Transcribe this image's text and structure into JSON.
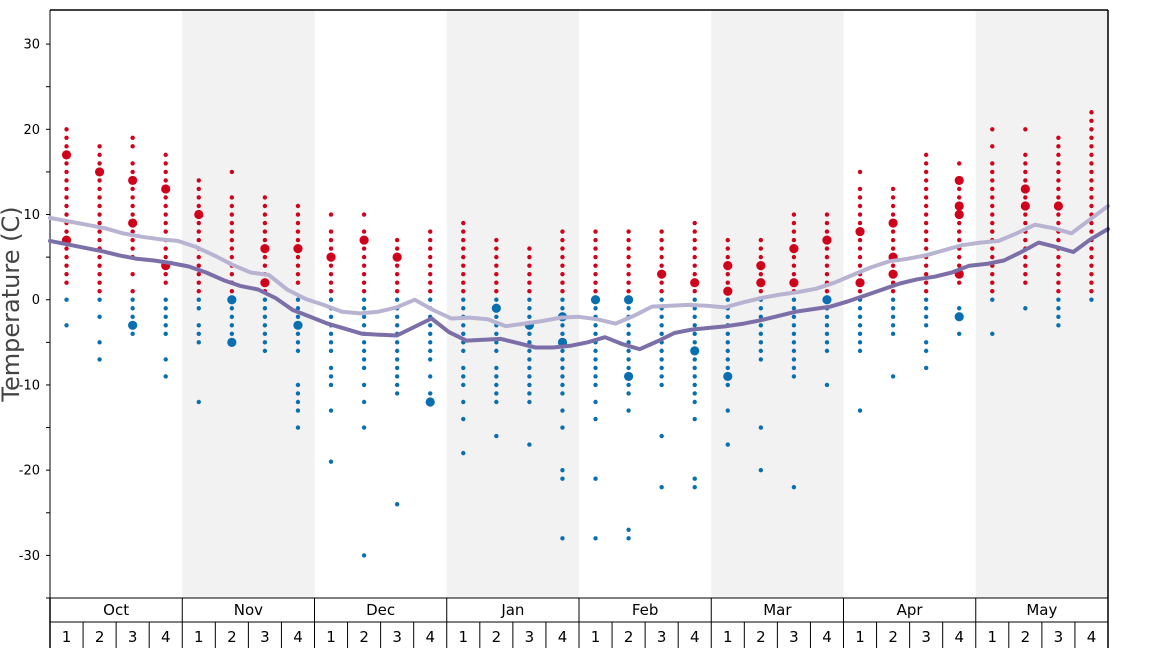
{
  "chart_data": {
    "type": "scatter",
    "ylabel": "Temperature (C)",
    "ylim": [
      -35,
      34
    ],
    "yticks": [
      30,
      20,
      10,
      0,
      -10,
      -20,
      -30
    ],
    "months": [
      "Oct",
      "Nov",
      "Dec",
      "Jan",
      "Feb",
      "Mar",
      "Apr",
      "May"
    ],
    "weeks_per_month": [
      "1",
      "2",
      "3",
      "4"
    ],
    "shaded_months": [
      "Nov",
      "Jan",
      "Mar",
      "May"
    ],
    "colors": {
      "warm_dots": "#d0021b",
      "cold_dots": "#0a6fb0",
      "light_line": "#b9b3d2",
      "dark_line": "#7c6fa8",
      "shade": "#f2f2f2"
    },
    "series": [
      {
        "values": [
          9.6,
          9.2,
          8.8,
          8.4,
          7.8,
          7.4,
          7.1,
          6.9,
          6.2,
          5.2,
          4.1,
          3.2,
          2.9,
          1.2,
          0.1,
          -0.6,
          -1.4,
          -1.6,
          -1.4,
          -0.9,
          0.0,
          -1.2,
          -2.2,
          -2.1,
          -2.3,
          -3.1,
          -2.8,
          -2.5,
          -2.1,
          -2.0,
          -2.3,
          -2.8,
          -1.9,
          -0.8,
          -0.7,
          -0.6,
          -0.7,
          -0.9,
          -0.3,
          0.2,
          0.6,
          0.9,
          1.3,
          2.0,
          2.9,
          3.8,
          4.5,
          4.8,
          5.2,
          5.8,
          6.4,
          6.7,
          6.9,
          7.8,
          8.8,
          8.4,
          7.8,
          9.4,
          11.0
        ]
      },
      {
        "values": [
          6.9,
          6.5,
          6.1,
          5.7,
          5.2,
          4.8,
          4.6,
          4.3,
          3.9,
          3.2,
          2.3,
          1.6,
          1.2,
          0.2,
          -1.2,
          -2.0,
          -2.8,
          -3.4,
          -4.0,
          -4.1,
          -4.2,
          -3.2,
          -2.2,
          -3.8,
          -4.8,
          -4.7,
          -4.6,
          -5.1,
          -5.6,
          -5.6,
          -5.4,
          -5.0,
          -4.4,
          -5.2,
          -5.8,
          -4.9,
          -3.9,
          -3.5,
          -3.3,
          -3.1,
          -2.8,
          -2.4,
          -1.9,
          -1.4,
          -1.1,
          -0.8,
          -0.2,
          0.5,
          1.2,
          1.9,
          2.4,
          2.7,
          3.2,
          4.0,
          4.2,
          4.6,
          5.6,
          6.7,
          6.2,
          5.6,
          7.1,
          8.3
        ]
      }
    ],
    "weekly_observations": [
      {
        "warm": [
          20,
          19,
          18,
          17,
          16,
          15,
          14,
          13,
          12,
          11,
          10,
          9,
          8,
          7,
          6,
          5,
          4,
          3,
          2
        ],
        "cold": [
          0,
          -3
        ],
        "big_warm": [
          17,
          7
        ],
        "big_cold": []
      },
      {
        "warm": [
          18,
          17,
          16,
          15,
          14,
          13,
          12,
          11,
          10,
          9,
          8,
          7,
          6,
          5,
          4,
          3,
          2,
          1
        ],
        "cold": [
          0,
          -2,
          -5,
          -7
        ],
        "big_warm": [
          15
        ],
        "big_cold": []
      },
      {
        "warm": [
          19,
          18,
          16,
          15,
          14,
          13,
          12,
          11,
          10,
          9,
          8,
          7,
          6,
          5,
          3,
          1
        ],
        "cold": [
          0,
          -1,
          -2,
          -3,
          -4
        ],
        "big_warm": [
          14,
          9
        ],
        "big_cold": [
          -3
        ]
      },
      {
        "warm": [
          17,
          16,
          15,
          14,
          13,
          12,
          11,
          10,
          9,
          8,
          7,
          6,
          5,
          4,
          3,
          2
        ],
        "cold": [
          0,
          -1,
          -2,
          -3,
          -4,
          -7,
          -9
        ],
        "big_warm": [
          13,
          4
        ],
        "big_cold": []
      },
      {
        "warm": [
          14,
          13,
          12,
          11,
          10,
          9,
          8,
          7,
          6,
          5,
          4,
          3,
          2,
          1
        ],
        "cold": [
          0,
          -1,
          -3,
          -4,
          -5,
          -12
        ],
        "big_warm": [
          10
        ],
        "big_cold": []
      },
      {
        "warm": [
          15,
          12,
          11,
          10,
          9,
          8,
          7,
          6,
          5,
          4,
          3,
          2,
          1
        ],
        "cold": [
          0,
          -1,
          -2,
          -3,
          -4,
          -5
        ],
        "big_warm": [],
        "big_cold": [
          0,
          -5
        ]
      },
      {
        "warm": [
          12,
          11,
          10,
          9,
          8,
          7,
          6,
          5,
          4,
          3,
          2,
          1
        ],
        "cold": [
          0,
          -1,
          -2,
          -3,
          -4,
          -5,
          -6
        ],
        "big_warm": [
          6,
          2
        ],
        "big_cold": []
      },
      {
        "warm": [
          11,
          10,
          9,
          8,
          7,
          6,
          5,
          4,
          3,
          2
        ],
        "cold": [
          0,
          -1,
          -2,
          -3,
          -4,
          -5,
          -6,
          -10,
          -11,
          -12,
          -13,
          -15
        ],
        "big_warm": [
          6
        ],
        "big_cold": [
          -3
        ]
      },
      {
        "warm": [
          10,
          8,
          7,
          6,
          5,
          4,
          3,
          2,
          1
        ],
        "cold": [
          0,
          -1,
          -2,
          -3,
          -4,
          -5,
          -6,
          -8,
          -9,
          -10,
          -13,
          -19
        ],
        "big_warm": [
          5
        ],
        "big_cold": []
      },
      {
        "warm": [
          10,
          8,
          7,
          6,
          5,
          4,
          3,
          2,
          1
        ],
        "cold": [
          0,
          -1,
          -2,
          -3,
          -4,
          -5,
          -6,
          -7,
          -8,
          -10,
          -12,
          -15,
          -30
        ],
        "big_warm": [
          7
        ],
        "big_cold": []
      },
      {
        "warm": [
          7,
          6,
          5,
          4,
          3,
          2,
          1
        ],
        "cold": [
          0,
          -1,
          -2,
          -3,
          -4,
          -5,
          -6,
          -7,
          -8,
          -9,
          -10,
          -11,
          -24
        ],
        "big_warm": [
          5
        ],
        "big_cold": []
      },
      {
        "warm": [
          8,
          7,
          6,
          5,
          4,
          3,
          2,
          1
        ],
        "cold": [
          0,
          -1,
          -2,
          -3,
          -4,
          -5,
          -6,
          -7,
          -9,
          -11,
          -12
        ],
        "big_warm": [],
        "big_cold": [
          -12
        ]
      },
      {
        "warm": [
          9,
          8,
          7,
          6,
          5,
          4,
          3,
          2,
          1
        ],
        "cold": [
          0,
          -1,
          -2,
          -3,
          -4,
          -5,
          -6,
          -8,
          -9,
          -10,
          -12,
          -14,
          -18
        ],
        "big_warm": [],
        "big_cold": []
      },
      {
        "warm": [
          7,
          6,
          5,
          4,
          3,
          2,
          1
        ],
        "cold": [
          0,
          -1,
          -2,
          -3,
          -4,
          -5,
          -6,
          -8,
          -9,
          -10,
          -11,
          -12,
          -16
        ],
        "big_warm": [],
        "big_cold": [
          -1
        ]
      },
      {
        "warm": [
          6,
          5,
          4,
          3,
          2,
          1
        ],
        "cold": [
          0,
          -1,
          -2,
          -3,
          -4,
          -5,
          -6,
          -7,
          -8,
          -9,
          -10,
          -11,
          -12,
          -17
        ],
        "big_warm": [],
        "big_cold": [
          -3
        ]
      },
      {
        "warm": [
          8,
          7,
          6,
          5,
          4,
          3,
          2,
          1
        ],
        "cold": [
          0,
          -1,
          -2,
          -3,
          -4,
          -5,
          -6,
          -7,
          -8,
          -9,
          -10,
          -11,
          -13,
          -15,
          -20,
          -21,
          -28
        ],
        "big_warm": [],
        "big_cold": [
          -2,
          -5
        ]
      },
      {
        "warm": [
          8,
          7,
          6,
          5,
          4,
          3,
          2,
          1
        ],
        "cold": [
          0,
          -1,
          -2,
          -3,
          -4,
          -5,
          -6,
          -7,
          -8,
          -9,
          -10,
          -12,
          -14,
          -21,
          -28
        ],
        "big_warm": [],
        "big_cold": [
          0
        ]
      },
      {
        "warm": [
          8,
          7,
          6,
          5,
          4,
          3,
          2,
          1
        ],
        "cold": [
          0,
          -1,
          -2,
          -3,
          -4,
          -5,
          -6,
          -7,
          -8,
          -9,
          -10,
          -11,
          -13,
          -27,
          -28
        ],
        "big_warm": [],
        "big_cold": [
          0,
          -9
        ]
      },
      {
        "warm": [
          8,
          7,
          6,
          5,
          4,
          3,
          2,
          1
        ],
        "cold": [
          0,
          -1,
          -2,
          -3,
          -4,
          -5,
          -6,
          -7,
          -8,
          -9,
          -10,
          -16,
          -22
        ],
        "big_warm": [
          3
        ],
        "big_cold": []
      },
      {
        "warm": [
          9,
          8,
          7,
          6,
          5,
          4,
          3,
          2,
          1
        ],
        "cold": [
          0,
          -1,
          -2,
          -3,
          -4,
          -5,
          -6,
          -7,
          -8,
          -9,
          -10,
          -11,
          -12,
          -14,
          -21,
          -22
        ],
        "big_warm": [
          2
        ],
        "big_cold": [
          -6
        ]
      },
      {
        "warm": [
          7,
          6,
          5,
          4,
          3,
          2,
          1
        ],
        "cold": [
          0,
          -1,
          -2,
          -3,
          -4,
          -5,
          -6,
          -7,
          -8,
          -10,
          -13,
          -17
        ],
        "big_warm": [
          4,
          1
        ],
        "big_cold": [
          -9
        ]
      },
      {
        "warm": [
          7,
          6,
          5,
          4,
          3,
          2,
          1
        ],
        "cold": [
          0,
          -1,
          -2,
          -3,
          -4,
          -5,
          -6,
          -7,
          -15,
          -20
        ],
        "big_warm": [
          4,
          2
        ],
        "big_cold": []
      },
      {
        "warm": [
          10,
          9,
          8,
          7,
          6,
          5,
          4,
          3,
          2,
          1
        ],
        "cold": [
          0,
          -1,
          -2,
          -3,
          -4,
          -5,
          -6,
          -7,
          -8,
          -9,
          -22
        ],
        "big_warm": [
          6,
          2
        ],
        "big_cold": []
      },
      {
        "warm": [
          10,
          9,
          8,
          7,
          6,
          5,
          4,
          3,
          2,
          1
        ],
        "cold": [
          0,
          -1,
          -2,
          -3,
          -4,
          -5,
          -6,
          -10
        ],
        "big_warm": [
          7
        ],
        "big_cold": [
          0
        ]
      },
      {
        "warm": [
          15,
          13,
          12,
          11,
          10,
          9,
          8,
          7,
          6,
          5,
          4,
          3,
          2,
          1
        ],
        "cold": [
          0,
          -1,
          -2,
          -3,
          -4,
          -5,
          -6,
          -13
        ],
        "big_warm": [
          8,
          2
        ],
        "big_cold": []
      },
      {
        "warm": [
          13,
          12,
          11,
          10,
          9,
          8,
          7,
          6,
          5,
          4,
          3,
          2,
          1
        ],
        "cold": [
          0,
          -1,
          -2,
          -3,
          -4,
          -9
        ],
        "big_warm": [
          9,
          5,
          3
        ],
        "big_cold": []
      },
      {
        "warm": [
          17,
          16,
          15,
          14,
          13,
          12,
          11,
          10,
          9,
          8,
          7,
          6,
          5,
          4,
          3,
          2,
          1
        ],
        "cold": [
          0,
          -1,
          -2,
          -3,
          -5,
          -6,
          -8
        ],
        "big_warm": [],
        "big_cold": []
      },
      {
        "warm": [
          16,
          14,
          13,
          12,
          11,
          10,
          9,
          8,
          7,
          6,
          5,
          4,
          3,
          2
        ],
        "cold": [
          -1,
          -2,
          -4
        ],
        "big_warm": [
          14,
          11,
          10,
          3
        ],
        "big_cold": [
          -2
        ]
      },
      {
        "warm": [
          20,
          18,
          16,
          15,
          14,
          13,
          12,
          11,
          10,
          9,
          8,
          7,
          6,
          5,
          4,
          3,
          2,
          1
        ],
        "cold": [
          0,
          -4
        ],
        "big_warm": [],
        "big_cold": []
      },
      {
        "warm": [
          20,
          17,
          16,
          15,
          14,
          13,
          12,
          11,
          10,
          9,
          8,
          7,
          6,
          5,
          4,
          3,
          2
        ],
        "cold": [
          -1
        ],
        "big_warm": [
          13,
          11
        ],
        "big_cold": []
      },
      {
        "warm": [
          19,
          18,
          17,
          16,
          15,
          14,
          13,
          12,
          11,
          10,
          9,
          8,
          7,
          6,
          5,
          4,
          3,
          2,
          1
        ],
        "cold": [
          0,
          -1,
          -2,
          -3
        ],
        "big_warm": [
          11
        ],
        "big_cold": []
      },
      {
        "warm": [
          22,
          21,
          20,
          19,
          18,
          17,
          16,
          15,
          14,
          13,
          12,
          11,
          10,
          9,
          8,
          7,
          6,
          5,
          4,
          3,
          2,
          1
        ],
        "cold": [
          0
        ],
        "big_warm": [],
        "big_cold": []
      }
    ]
  }
}
